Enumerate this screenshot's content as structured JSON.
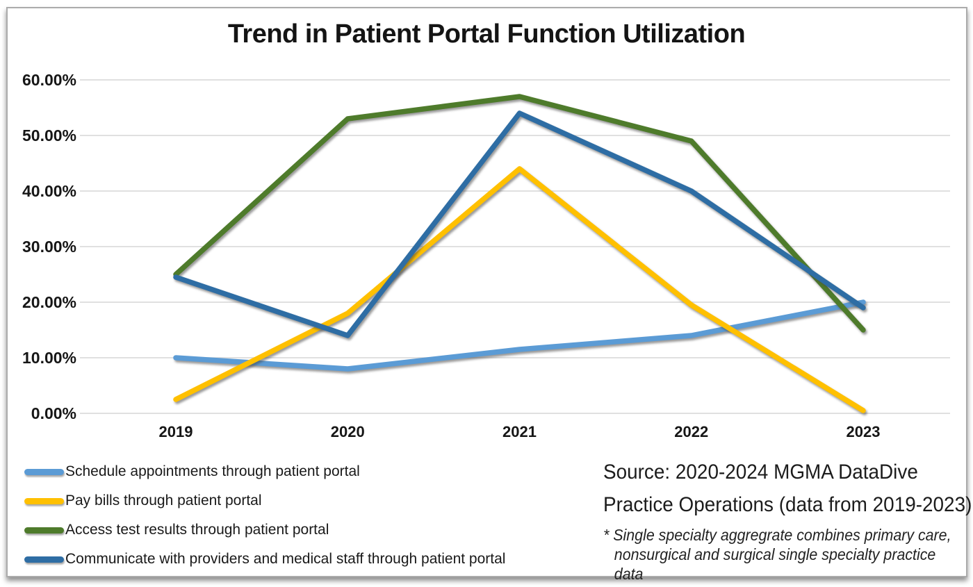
{
  "title": "Trend in Patient Portal Function Utilization",
  "source": {
    "line1": "Source: 2020-2024 MGMA DataDive",
    "line2": "Practice Operations (data from 2019-2023)",
    "note_line1": "* Single specialty aggregrate combines primary care,",
    "note_line2": "nonsurgical and surgical single specialty practice data"
  },
  "chart_data": {
    "type": "line",
    "title": "Trend in Patient Portal Function Utilization",
    "categories": [
      "2019",
      "2020",
      "2021",
      "2022",
      "2023"
    ],
    "y_ticks": [
      "60.00%",
      "50.00%",
      "40.00%",
      "30.00%",
      "20.00%",
      "10.00%",
      "0.00%"
    ],
    "ylim": [
      0,
      60
    ],
    "grid": true,
    "gridline_color": "#d6d6d6",
    "legend_position": "bottom-left",
    "series": [
      {
        "id": "schedule-appointments",
        "name": "Schedule appointments through patient portal",
        "color": "#5B9BD5",
        "values": [
          10,
          8,
          11.5,
          14,
          20
        ]
      },
      {
        "id": "pay-bills",
        "name": "Pay bills through patient portal",
        "color": "#FFC000",
        "values": [
          2.5,
          18,
          44,
          19.5,
          0.5
        ]
      },
      {
        "id": "access-test-results",
        "name": "Access test results through patient portal",
        "color": "#4E7B2B",
        "values": [
          25,
          53,
          57,
          49,
          15
        ]
      },
      {
        "id": "communicate-providers",
        "name": "Communicate with providers and medical staff through patient portal",
        "color": "#2E6DA4",
        "values": [
          24.5,
          14,
          54,
          40,
          19
        ]
      }
    ]
  }
}
